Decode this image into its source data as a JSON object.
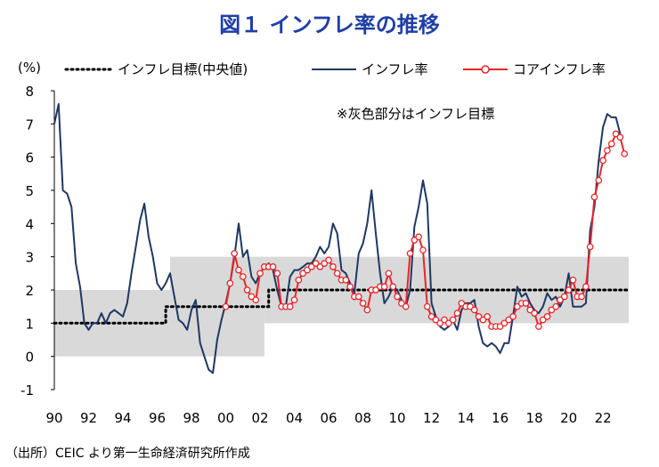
{
  "title": "図１ インフレ率の推移",
  "source_note": "（出所）CEIC より第一生命経済研究所作成",
  "colors": {
    "target_band": "#d9d9d9",
    "inflation": "#1f3864",
    "core": "#e8252b",
    "target_line": "#000000"
  },
  "chart_data": {
    "type": "line",
    "title": "図１ インフレ率の推移",
    "ylabel": "(%)",
    "xlabel": "",
    "ylim": [
      -1,
      8
    ],
    "xlim": [
      1990,
      2023.5
    ],
    "y_ticks": [
      "8",
      "7",
      "6",
      "5",
      "4",
      "3",
      "2",
      "1",
      "0",
      "-1"
    ],
    "x_tick_labels": [
      {
        "x": 1990,
        "label": "90"
      },
      {
        "x": 1992,
        "label": "92"
      },
      {
        "x": 1994,
        "label": "94"
      },
      {
        "x": 1996,
        "label": "96"
      },
      {
        "x": 1998,
        "label": "98"
      },
      {
        "x": 2000,
        "label": "00"
      },
      {
        "x": 2002,
        "label": "02"
      },
      {
        "x": 2004,
        "label": "04"
      },
      {
        "x": 2006,
        "label": "06"
      },
      {
        "x": 2008,
        "label": "08"
      },
      {
        "x": 2010,
        "label": "10"
      },
      {
        "x": 2012,
        "label": "12"
      },
      {
        "x": 2014,
        "label": "14"
      },
      {
        "x": 2016,
        "label": "16"
      },
      {
        "x": 2018,
        "label": "18"
      },
      {
        "x": 2020,
        "label": "20"
      },
      {
        "x": 2022,
        "label": "22"
      }
    ],
    "annotation": "※灰色部分はインフレ目標",
    "legend": {
      "position": "top",
      "items": [
        {
          "label": "インフレ目標(中央値)",
          "style": "dotted"
        },
        {
          "label": "インフレ率",
          "style": "line"
        },
        {
          "label": "コアインフレ率",
          "style": "line-marker"
        }
      ]
    },
    "target_band": [
      {
        "from": 1990,
        "to": 1996.75,
        "low": 0,
        "high": 2
      },
      {
        "from": 1996.75,
        "to": 2002.25,
        "low": 0,
        "high": 3
      },
      {
        "from": 2002.25,
        "to": 2023.5,
        "low": 1,
        "high": 3
      }
    ],
    "series": [
      {
        "name": "インフレ目標(中央値)",
        "points": [
          [
            1990,
            1
          ],
          [
            1996.5,
            1
          ],
          [
            1996.5,
            1.5
          ],
          [
            2002.5,
            1.5
          ],
          [
            2002.5,
            2
          ],
          [
            2023.5,
            2
          ]
        ]
      },
      {
        "name": "インフレ率",
        "points": [
          [
            1990.0,
            7.0
          ],
          [
            1990.25,
            7.6
          ],
          [
            1990.5,
            5.0
          ],
          [
            1990.75,
            4.9
          ],
          [
            1991.0,
            4.5
          ],
          [
            1991.25,
            2.8
          ],
          [
            1991.5,
            2.1
          ],
          [
            1991.75,
            1.0
          ],
          [
            1992.0,
            0.8
          ],
          [
            1992.25,
            1.0
          ],
          [
            1992.5,
            1.0
          ],
          [
            1992.75,
            1.3
          ],
          [
            1993.0,
            1.0
          ],
          [
            1993.25,
            1.3
          ],
          [
            1993.5,
            1.4
          ],
          [
            1993.75,
            1.3
          ],
          [
            1994.0,
            1.2
          ],
          [
            1994.25,
            1.6
          ],
          [
            1994.5,
            2.5
          ],
          [
            1994.75,
            3.3
          ],
          [
            1995.0,
            4.1
          ],
          [
            1995.25,
            4.6
          ],
          [
            1995.5,
            3.6
          ],
          [
            1995.75,
            3.0
          ],
          [
            1996.0,
            2.2
          ],
          [
            1996.25,
            2.0
          ],
          [
            1996.5,
            2.2
          ],
          [
            1996.75,
            2.5
          ],
          [
            1997.0,
            1.8
          ],
          [
            1997.25,
            1.1
          ],
          [
            1997.5,
            1.0
          ],
          [
            1997.75,
            0.8
          ],
          [
            1998.0,
            1.4
          ],
          [
            1998.25,
            1.7
          ],
          [
            1998.5,
            0.4
          ],
          [
            1998.75,
            0.0
          ],
          [
            1999.0,
            -0.4
          ],
          [
            1999.25,
            -0.5
          ],
          [
            1999.5,
            0.5
          ],
          [
            1999.75,
            1.1
          ],
          [
            2000.0,
            1.6
          ],
          [
            2000.25,
            2.2
          ],
          [
            2000.5,
            3.0
          ],
          [
            2000.75,
            4.0
          ],
          [
            2001.0,
            3.0
          ],
          [
            2001.25,
            3.2
          ],
          [
            2001.5,
            2.4
          ],
          [
            2001.75,
            2.2
          ],
          [
            2002.0,
            2.5
          ],
          [
            2002.25,
            2.7
          ],
          [
            2002.5,
            2.8
          ],
          [
            2002.75,
            2.6
          ],
          [
            2003.0,
            2.0
          ],
          [
            2003.25,
            1.5
          ],
          [
            2003.5,
            1.5
          ],
          [
            2003.75,
            2.4
          ],
          [
            2004.0,
            2.6
          ],
          [
            2004.25,
            2.6
          ],
          [
            2004.5,
            2.7
          ],
          [
            2004.75,
            2.8
          ],
          [
            2005.0,
            2.8
          ],
          [
            2005.25,
            3.0
          ],
          [
            2005.5,
            3.3
          ],
          [
            2005.75,
            3.1
          ],
          [
            2006.0,
            3.3
          ],
          [
            2006.25,
            4.0
          ],
          [
            2006.5,
            3.7
          ],
          [
            2006.75,
            2.6
          ],
          [
            2007.0,
            2.5
          ],
          [
            2007.25,
            2.2
          ],
          [
            2007.5,
            1.9
          ],
          [
            2007.75,
            3.1
          ],
          [
            2008.0,
            3.4
          ],
          [
            2008.25,
            4.0
          ],
          [
            2008.5,
            5.0
          ],
          [
            2008.75,
            3.7
          ],
          [
            2009.0,
            2.5
          ],
          [
            2009.25,
            1.6
          ],
          [
            2009.5,
            1.8
          ],
          [
            2009.75,
            2.1
          ],
          [
            2010.0,
            2.0
          ],
          [
            2010.25,
            1.7
          ],
          [
            2010.5,
            1.5
          ],
          [
            2010.75,
            2.0
          ],
          [
            2011.0,
            3.9
          ],
          [
            2011.25,
            4.5
          ],
          [
            2011.5,
            5.3
          ],
          [
            2011.75,
            4.6
          ],
          [
            2012.0,
            1.6
          ],
          [
            2012.25,
            1.2
          ],
          [
            2012.5,
            0.9
          ],
          [
            2012.75,
            0.8
          ],
          [
            2013.0,
            0.9
          ],
          [
            2013.25,
            1.1
          ],
          [
            2013.5,
            0.8
          ],
          [
            2013.75,
            1.4
          ],
          [
            2014.0,
            1.6
          ],
          [
            2014.25,
            1.6
          ],
          [
            2014.5,
            1.7
          ],
          [
            2014.75,
            0.9
          ],
          [
            2015.0,
            0.4
          ],
          [
            2015.25,
            0.3
          ],
          [
            2015.5,
            0.4
          ],
          [
            2015.75,
            0.3
          ],
          [
            2016.0,
            0.1
          ],
          [
            2016.25,
            0.4
          ],
          [
            2016.5,
            0.4
          ],
          [
            2016.75,
            1.2
          ],
          [
            2017.0,
            2.1
          ],
          [
            2017.25,
            1.8
          ],
          [
            2017.5,
            1.9
          ],
          [
            2017.75,
            1.6
          ],
          [
            2018.0,
            1.4
          ],
          [
            2018.25,
            1.3
          ],
          [
            2018.5,
            1.5
          ],
          [
            2018.75,
            1.9
          ],
          [
            2019.0,
            1.7
          ],
          [
            2019.25,
            1.8
          ],
          [
            2019.5,
            1.5
          ],
          [
            2019.75,
            1.8
          ],
          [
            2020.0,
            2.5
          ],
          [
            2020.25,
            1.5
          ],
          [
            2020.5,
            1.5
          ],
          [
            2020.75,
            1.5
          ],
          [
            2021.0,
            1.6
          ],
          [
            2021.25,
            3.8
          ],
          [
            2021.5,
            4.5
          ],
          [
            2021.75,
            5.9
          ],
          [
            2022.0,
            6.9
          ],
          [
            2022.25,
            7.3
          ],
          [
            2022.5,
            7.2
          ],
          [
            2022.75,
            7.2
          ],
          [
            2023.0,
            6.7
          ]
        ]
      },
      {
        "name": "コアインフレ率",
        "points": [
          [
            2000.0,
            1.5
          ],
          [
            2000.25,
            2.2
          ],
          [
            2000.5,
            3.1
          ],
          [
            2000.75,
            2.6
          ],
          [
            2001.0,
            2.4
          ],
          [
            2001.25,
            2.0
          ],
          [
            2001.5,
            1.8
          ],
          [
            2001.75,
            1.7
          ],
          [
            2002.0,
            2.5
          ],
          [
            2002.25,
            2.7
          ],
          [
            2002.5,
            2.7
          ],
          [
            2002.75,
            2.7
          ],
          [
            2003.0,
            2.5
          ],
          [
            2003.25,
            1.5
          ],
          [
            2003.5,
            1.5
          ],
          [
            2003.75,
            1.5
          ],
          [
            2004.0,
            1.7
          ],
          [
            2004.25,
            2.3
          ],
          [
            2004.5,
            2.5
          ],
          [
            2004.75,
            2.6
          ],
          [
            2005.0,
            2.7
          ],
          [
            2005.25,
            2.8
          ],
          [
            2005.5,
            2.7
          ],
          [
            2005.75,
            2.8
          ],
          [
            2006.0,
            2.9
          ],
          [
            2006.25,
            2.7
          ],
          [
            2006.5,
            2.5
          ],
          [
            2006.75,
            2.3
          ],
          [
            2007.0,
            2.3
          ],
          [
            2007.25,
            2.1
          ],
          [
            2007.5,
            1.8
          ],
          [
            2007.75,
            1.8
          ],
          [
            2008.0,
            1.6
          ],
          [
            2008.25,
            1.4
          ],
          [
            2008.5,
            2.0
          ],
          [
            2008.75,
            2.0
          ],
          [
            2009.0,
            2.1
          ],
          [
            2009.25,
            2.1
          ],
          [
            2009.5,
            2.5
          ],
          [
            2009.75,
            2.1
          ],
          [
            2010.0,
            1.8
          ],
          [
            2010.25,
            1.6
          ],
          [
            2010.5,
            1.5
          ],
          [
            2010.75,
            3.1
          ],
          [
            2011.0,
            3.5
          ],
          [
            2011.25,
            3.6
          ],
          [
            2011.5,
            3.2
          ],
          [
            2011.75,
            1.5
          ],
          [
            2012.0,
            1.2
          ],
          [
            2012.25,
            1.1
          ],
          [
            2012.5,
            1.0
          ],
          [
            2012.75,
            1.1
          ],
          [
            2013.0,
            1.0
          ],
          [
            2013.25,
            1.1
          ],
          [
            2013.5,
            1.3
          ],
          [
            2013.75,
            1.6
          ],
          [
            2014.0,
            1.5
          ],
          [
            2014.25,
            1.5
          ],
          [
            2014.5,
            1.4
          ],
          [
            2014.75,
            1.2
          ],
          [
            2015.0,
            1.1
          ],
          [
            2015.25,
            1.2
          ],
          [
            2015.5,
            0.9
          ],
          [
            2015.75,
            0.9
          ],
          [
            2016.0,
            0.9
          ],
          [
            2016.25,
            1.0
          ],
          [
            2016.5,
            1.1
          ],
          [
            2016.75,
            1.2
          ],
          [
            2017.0,
            1.5
          ],
          [
            2017.25,
            1.6
          ],
          [
            2017.5,
            1.6
          ],
          [
            2017.75,
            1.4
          ],
          [
            2018.0,
            1.3
          ],
          [
            2018.25,
            0.9
          ],
          [
            2018.5,
            1.1
          ],
          [
            2018.75,
            1.2
          ],
          [
            2019.0,
            1.4
          ],
          [
            2019.25,
            1.5
          ],
          [
            2019.5,
            1.7
          ],
          [
            2019.75,
            1.8
          ],
          [
            2020.0,
            2.0
          ],
          [
            2020.25,
            2.3
          ],
          [
            2020.5,
            1.8
          ],
          [
            2020.75,
            1.8
          ],
          [
            2021.0,
            2.1
          ],
          [
            2021.25,
            3.3
          ],
          [
            2021.5,
            4.8
          ],
          [
            2021.75,
            5.3
          ],
          [
            2022.0,
            5.9
          ],
          [
            2022.25,
            6.2
          ],
          [
            2022.5,
            6.4
          ],
          [
            2022.75,
            6.7
          ],
          [
            2023.0,
            6.6
          ],
          [
            2023.25,
            6.1
          ]
        ]
      }
    ]
  }
}
